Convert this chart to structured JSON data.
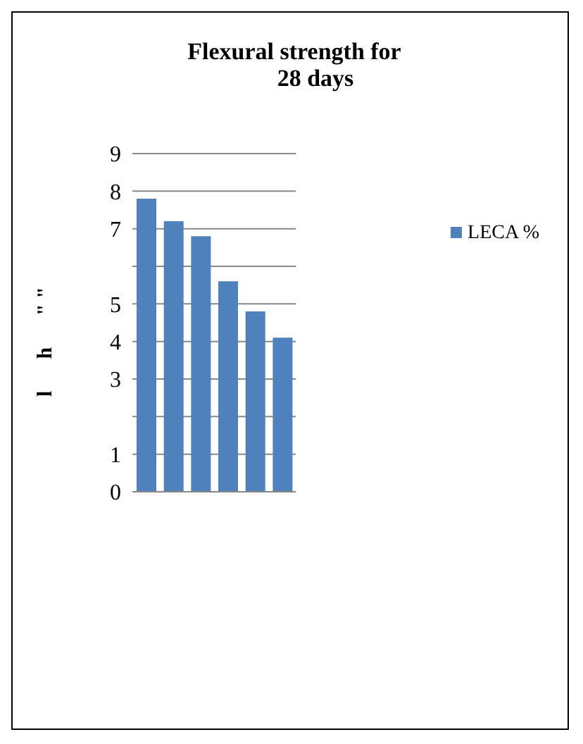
{
  "chart_data": {
    "type": "bar",
    "title": "Flexural strength for\n28 days",
    "ylabel": "l      h      \" \"",
    "categories": [
      null,
      null,
      null,
      null,
      null,
      null
    ],
    "series": [
      {
        "name": "LECA %",
        "color": "#4f81bd",
        "values": [
          7.8,
          7.2,
          6.8,
          5.6,
          4.8,
          4.1
        ]
      }
    ],
    "ylim": [
      0,
      9
    ],
    "yticks": [
      0,
      1,
      {
        "value": 2,
        "label": null
      },
      3,
      4,
      5,
      {
        "value": 6,
        "label": null
      },
      7,
      8,
      9
    ],
    "grid": "y",
    "legend": "right"
  }
}
